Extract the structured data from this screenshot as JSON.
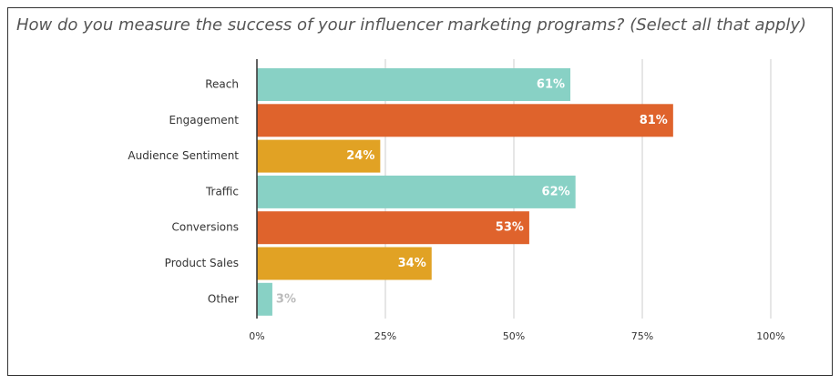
{
  "chart_data": {
    "type": "bar",
    "orientation": "horizontal",
    "title": "How do you measure the success of your influencer marketing programs? (Select all that apply)",
    "categories": [
      "Reach",
      "Engagement",
      "Audience Sentiment",
      "Traffic",
      "Conversions",
      "Product Sales",
      "Other"
    ],
    "values": [
      61,
      81,
      24,
      62,
      53,
      34,
      3
    ],
    "value_labels": [
      "61%",
      "81%",
      "24%",
      "62%",
      "53%",
      "34%",
      "3%"
    ],
    "colors": [
      "#88d1c5",
      "#df632c",
      "#e1a224",
      "#88d1c5",
      "#df632c",
      "#e1a224",
      "#88d1c5"
    ],
    "xlim": [
      0,
      100
    ],
    "xticks": [
      {
        "value": 0,
        "label": "0%"
      },
      {
        "value": 25,
        "label": "25%"
      },
      {
        "value": 50,
        "label": "50%"
      },
      {
        "value": 75,
        "label": "75%"
      },
      {
        "value": 100,
        "label": "100%"
      }
    ],
    "grid": true
  }
}
